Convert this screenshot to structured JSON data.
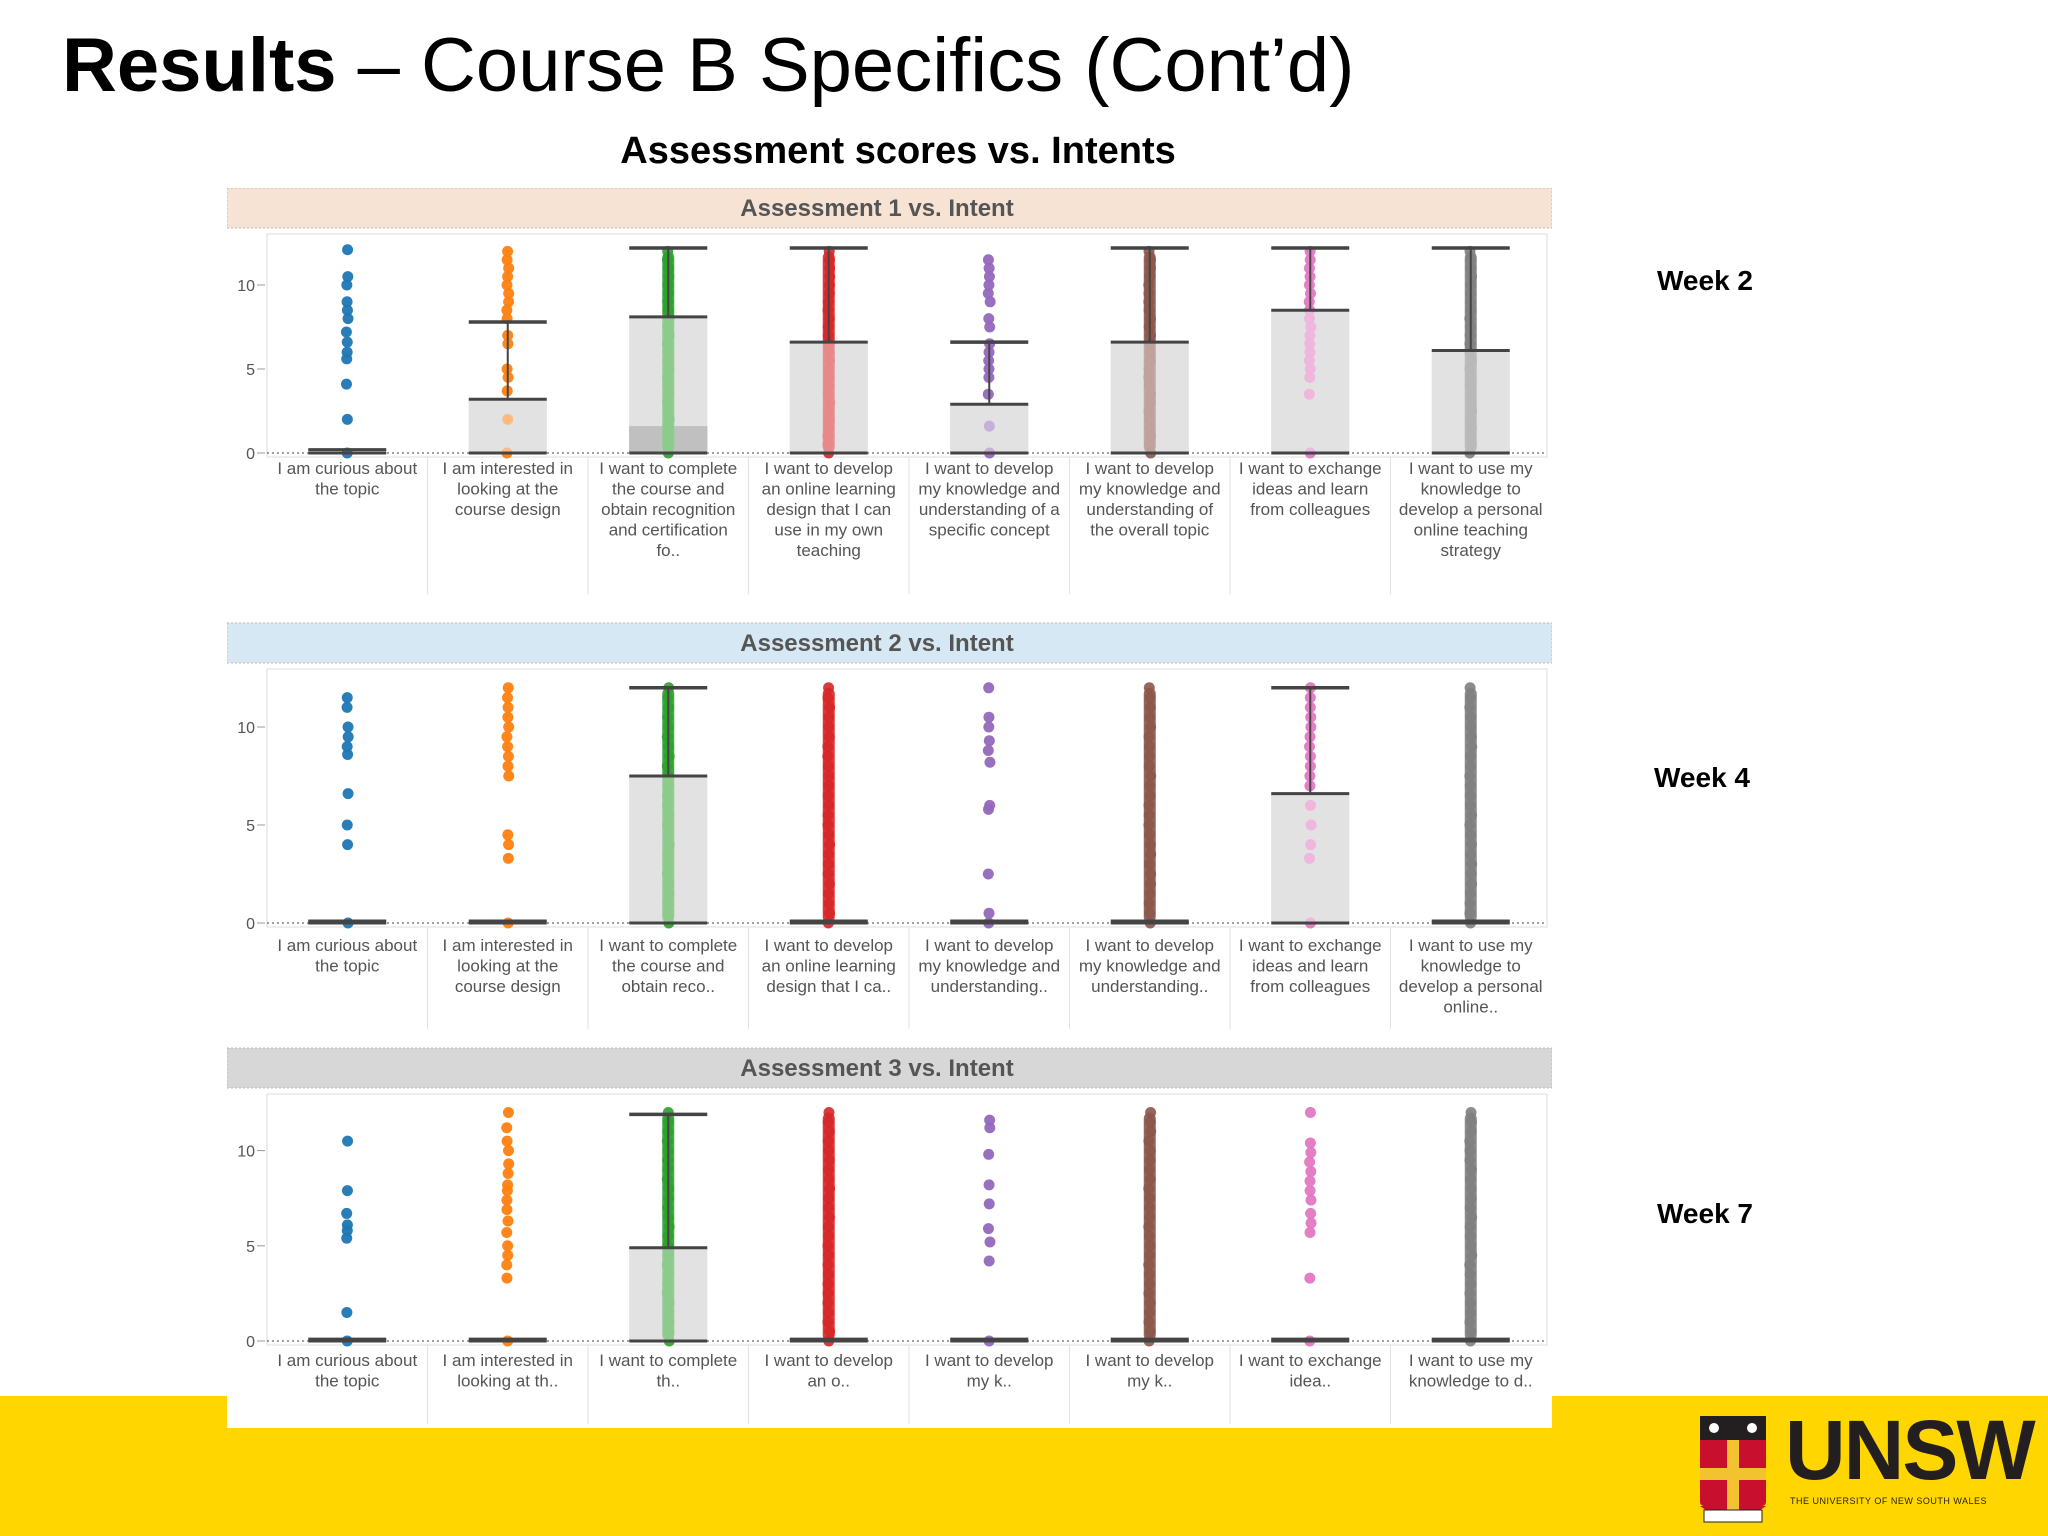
{
  "slide": {
    "title_bold": "Results",
    "title_rest": " – Course B Specifics (Cont’d)",
    "subtitle": "Assessment scores vs. Intents",
    "week_labels": [
      "Week 2",
      "Week 4",
      "Week 7"
    ],
    "logo_text": "UNSW",
    "logo_sub": "THE UNIVERSITY OF NEW SOUTH WALES"
  },
  "colors": {
    "footer": "#ffd600",
    "box": "#c8c7c9",
    "panel_headers": [
      "#f6e3d4",
      "#d6e8f3",
      "#d7d7d7"
    ],
    "series": [
      "#1f77b4",
      "#ff7f0e",
      "#2ca02c",
      "#d62728",
      "#9467bd",
      "#8c564b",
      "#e377c2",
      "#7f7f7f"
    ]
  },
  "chart_data": [
    {
      "type": "box-plot with jittered points",
      "title": "Assessment 1 vs. Intent",
      "yticks": [
        0,
        5,
        10
      ],
      "ylim": [
        0,
        12.5
      ],
      "categories": [
        "I am curious about the topic",
        "I am interested in looking at the course design",
        "I want to complete the course and obtain recognition and certification fo..",
        "I want to develop an online learning design that I can use in my own teaching",
        "I want to develop my knowledge and understanding of a specific concept",
        "I want to develop my knowledge and understanding of the overall topic",
        "I want to exchange ideas and learn from colleagues",
        "I want to use my knowledge to develop a personal online teaching strategy"
      ],
      "boxes": [
        {
          "q1": 0,
          "median": 0,
          "q3": 0.2,
          "whisker_low": 0,
          "whisker_high": 0.2
        },
        {
          "q1": 0,
          "median": 0,
          "q3": 3.2,
          "whisker_low": 0,
          "whisker_high": 7.8
        },
        {
          "q1": 0,
          "median": 1.6,
          "q3": 8.1,
          "whisker_low": 0,
          "whisker_high": 12.2
        },
        {
          "q1": 0,
          "median": 0,
          "q3": 6.6,
          "whisker_low": 0,
          "whisker_high": 12.2
        },
        {
          "q1": 0,
          "median": 0,
          "q3": 2.9,
          "whisker_low": 0,
          "whisker_high": 6.6
        },
        {
          "q1": 0,
          "median": 0,
          "q3": 6.6,
          "whisker_low": 0,
          "whisker_high": 12.2
        },
        {
          "q1": 0,
          "median": 0,
          "q3": 8.5,
          "whisker_low": 0,
          "whisker_high": 12.2
        },
        {
          "q1": 0,
          "median": 0,
          "q3": 6.1,
          "whisker_low": 0,
          "whisker_high": 12.2
        }
      ],
      "points": [
        [
          0,
          2,
          4.1,
          5.6,
          6,
          6.6,
          7.2,
          8,
          8.5,
          9,
          10,
          10.5,
          12.1
        ],
        [
          0,
          2,
          3.7,
          4.5,
          5,
          6.5,
          7,
          8,
          8.5,
          9,
          9.5,
          10,
          10.5,
          11,
          11.5,
          12
        ],
        "dense",
        "dense",
        [
          0,
          1.6,
          3.5,
          4.5,
          5,
          5.5,
          6,
          6.5,
          7.5,
          8,
          9,
          9.5,
          10,
          10.5,
          11,
          11.5
        ],
        "dense",
        [
          0,
          3.5,
          4.5,
          5,
          5.5,
          6,
          6.5,
          7,
          7.5,
          8,
          8.5,
          9,
          9.5,
          10,
          10.5,
          11,
          11.5,
          12
        ],
        "dense"
      ]
    },
    {
      "type": "box-plot with jittered points",
      "title": "Assessment 2 vs. Intent",
      "yticks": [
        0,
        5,
        10
      ],
      "ylim": [
        0,
        12.5
      ],
      "categories": [
        "I am curious about the topic",
        "I am interested in looking at the course design",
        "I want to complete the course and obtain reco..",
        "I want to develop an online learning design that I ca..",
        "I want to develop my knowledge and understanding..",
        "I want to develop my knowledge and understanding..",
        "I want to exchange ideas and learn from colleagues",
        "I want to use my knowledge to develop a personal online.."
      ],
      "boxes": [
        {
          "q1": 0,
          "median": 0,
          "q3": 0.1,
          "whisker_low": 0,
          "whisker_high": 0.1
        },
        {
          "q1": 0,
          "median": 0,
          "q3": 0.1,
          "whisker_low": 0,
          "whisker_high": 0.1
        },
        {
          "q1": 0,
          "median": 0,
          "q3": 7.5,
          "whisker_low": 0,
          "whisker_high": 12
        },
        {
          "q1": 0,
          "median": 0,
          "q3": 0.1,
          "whisker_low": 0,
          "whisker_high": 0.1
        },
        {
          "q1": 0,
          "median": 0,
          "q3": 0.1,
          "whisker_low": 0,
          "whisker_high": 0.1
        },
        {
          "q1": 0,
          "median": 0,
          "q3": 0.1,
          "whisker_low": 0,
          "whisker_high": 0.1
        },
        {
          "q1": 0,
          "median": 0,
          "q3": 6.6,
          "whisker_low": 0,
          "whisker_high": 12
        },
        {
          "q1": 0,
          "median": 0,
          "q3": 0.1,
          "whisker_low": 0,
          "whisker_high": 0.1
        }
      ],
      "points": [
        [
          0,
          4,
          5,
          6.6,
          8.6,
          9,
          9.5,
          10,
          11,
          11.5
        ],
        [
          0,
          3.3,
          4,
          4.5,
          7.5,
          8,
          8.5,
          9,
          9.5,
          10,
          10.5,
          11,
          11.5,
          12
        ],
        "dense",
        "dense",
        [
          0,
          0.5,
          2.5,
          5.8,
          6,
          8.2,
          8.8,
          9.3,
          10,
          10.5,
          12
        ],
        "dense",
        [
          0,
          3.3,
          4,
          5,
          6,
          7,
          7.5,
          8,
          8.5,
          9,
          9.5,
          10,
          10.5,
          11,
          11.5,
          12
        ],
        "dense"
      ]
    },
    {
      "type": "box-plot with jittered points",
      "title": "Assessment 3 vs. Intent",
      "yticks": [
        0,
        5,
        10
      ],
      "ylim": [
        0,
        12.5
      ],
      "categories": [
        "I am curious about the topic",
        "I am interested in looking at th..",
        "I want to complete th..",
        "I want to develop an o..",
        "I want to develop my k..",
        "I want to develop my k..",
        "I want to exchange idea..",
        "I want to use my knowledge to d.."
      ],
      "boxes": [
        {
          "q1": 0,
          "median": 0,
          "q3": 0.1,
          "whisker_low": 0,
          "whisker_high": 0.1
        },
        {
          "q1": 0,
          "median": 0,
          "q3": 0.1,
          "whisker_low": 0,
          "whisker_high": 0.1
        },
        {
          "q1": 0,
          "median": 0,
          "q3": 4.9,
          "whisker_low": 0,
          "whisker_high": 11.9
        },
        {
          "q1": 0,
          "median": 0,
          "q3": 0.1,
          "whisker_low": 0,
          "whisker_high": 0.1
        },
        {
          "q1": 0,
          "median": 0,
          "q3": 0.1,
          "whisker_low": 0,
          "whisker_high": 0.1
        },
        {
          "q1": 0,
          "median": 0,
          "q3": 0.1,
          "whisker_low": 0,
          "whisker_high": 0.1
        },
        {
          "q1": 0,
          "median": 0,
          "q3": 0.1,
          "whisker_low": 0,
          "whisker_high": 0.1
        },
        {
          "q1": 0,
          "median": 0,
          "q3": 0.1,
          "whisker_low": 0,
          "whisker_high": 0.1
        }
      ],
      "points": [
        [
          0,
          1.5,
          5.4,
          5.8,
          6.1,
          6.7,
          7.9,
          10.5
        ],
        [
          0,
          3.3,
          4,
          4.5,
          5,
          5.7,
          6.3,
          6.9,
          7.4,
          7.9,
          8.2,
          8.8,
          9.3,
          10,
          10.5,
          11.2,
          12
        ],
        "dense",
        "dense",
        [
          0,
          4.2,
          5.2,
          5.9,
          7.2,
          8.2,
          9.8,
          11.2,
          11.6
        ],
        "dense",
        [
          0,
          3.3,
          5.7,
          6.2,
          6.7,
          7.4,
          7.9,
          8.4,
          8.9,
          9.4,
          9.9,
          10.4,
          12
        ],
        "dense"
      ]
    }
  ]
}
